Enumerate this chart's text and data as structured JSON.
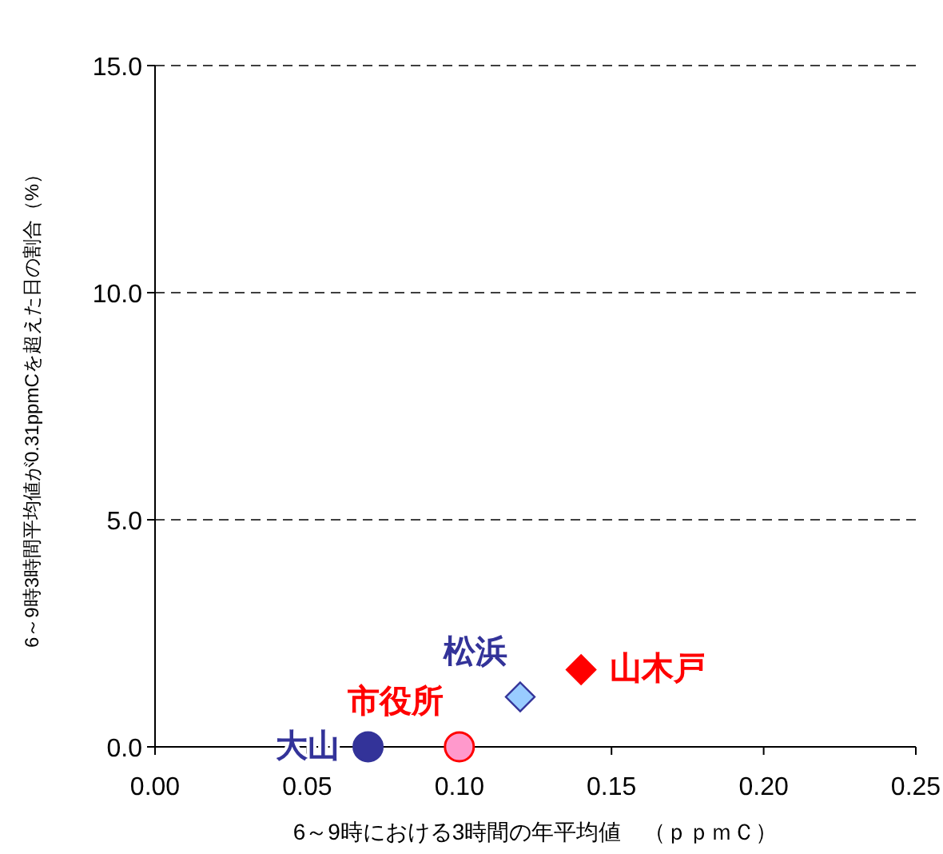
{
  "chart_data": {
    "type": "scatter",
    "xlabel": "6～9時における3時間の年平均値　（ｐｐｍＣ）",
    "ylabel": "6～9時3時間平均値が0.31ppmCを超えた日の割合（%）",
    "xlim": [
      0,
      0.25
    ],
    "ylim": [
      0,
      15
    ],
    "xticks": [
      {
        "value": 0,
        "label": "0.00"
      },
      {
        "value": 0.05,
        "label": "0.05"
      },
      {
        "value": 0.1,
        "label": "0.10"
      },
      {
        "value": 0.15,
        "label": "0.15"
      },
      {
        "value": 0.2,
        "label": "0.20"
      },
      {
        "value": 0.25,
        "label": "0.25"
      }
    ],
    "yticks": [
      {
        "value": 0,
        "label": "0.0"
      },
      {
        "value": 5,
        "label": "5.0"
      },
      {
        "value": 10,
        "label": "10.0"
      },
      {
        "value": 15,
        "label": "15.0"
      }
    ],
    "grid": "y",
    "series": [
      {
        "name": "大山",
        "color": "#333399",
        "marker": "circle",
        "x": [
          0.07
        ],
        "values": [
          0
        ]
      },
      {
        "name": "市役所",
        "color": "#ff99cc",
        "marker": "circle",
        "x": [
          0.1
        ],
        "values": [
          0
        ]
      },
      {
        "name": "松浜",
        "color": "#99ccff",
        "marker": "diamond",
        "x": [
          0.12
        ],
        "values": [
          1.1
        ]
      },
      {
        "name": "山木戸",
        "color": "#ff0000",
        "marker": "diamond",
        "x": [
          0.14
        ],
        "values": [
          1.7
        ]
      }
    ]
  }
}
